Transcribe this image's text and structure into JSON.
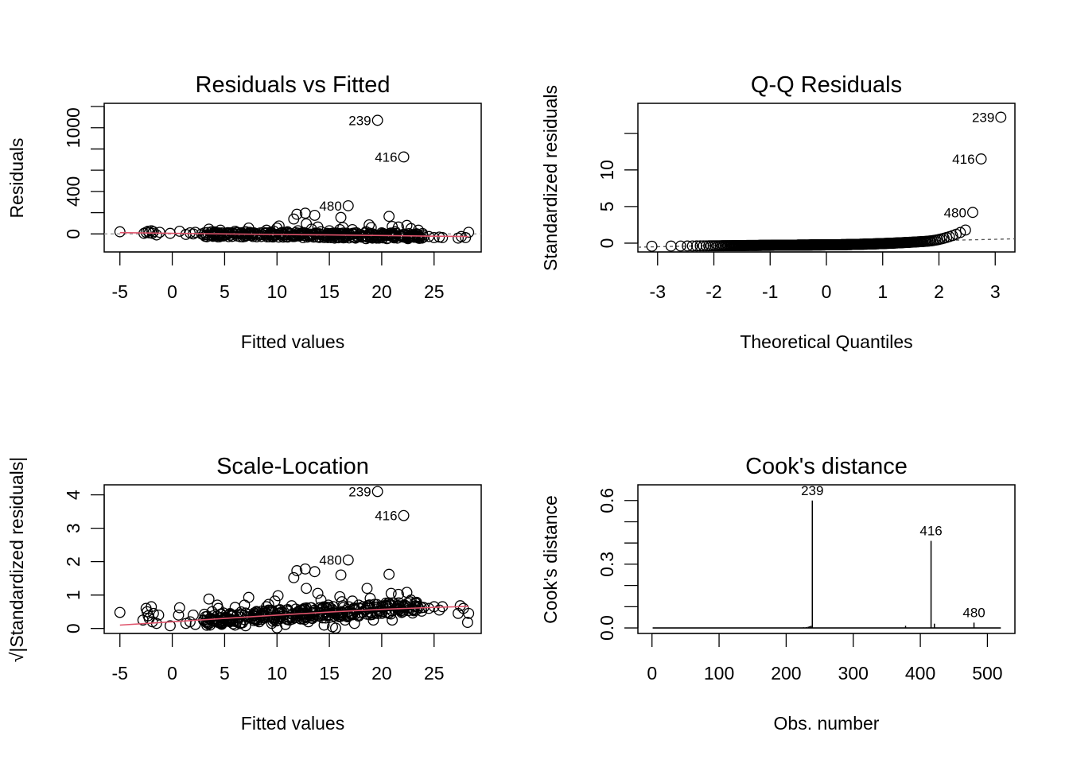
{
  "colors": {
    "points": "#000000",
    "smoother": "#DF536B",
    "reference": "#999999"
  },
  "chart_data": [
    {
      "id": "resid_fitted",
      "type": "scatter",
      "title": "Residuals vs Fitted",
      "xlabel": "Fitted values",
      "ylabel": "Residuals",
      "xlim": [
        -6.5,
        29.5
      ],
      "ylim": [
        -170,
        1230
      ],
      "xticks": [
        -5,
        0,
        5,
        10,
        15,
        20,
        25
      ],
      "xtick_labels": [
        "-5",
        "0",
        "5",
        "10",
        "15",
        "20",
        "25"
      ],
      "yticks": [
        0,
        200,
        400,
        600,
        800,
        1000,
        1200
      ],
      "ytick_labels": [
        "0",
        "",
        "400",
        "",
        "",
        "1000",
        ""
      ],
      "reference_line": 0,
      "smoother": [
        [
          -5,
          12
        ],
        [
          0,
          5
        ],
        [
          5,
          0
        ],
        [
          10,
          -5
        ],
        [
          15,
          -10
        ],
        [
          20,
          -15
        ],
        [
          25,
          -22
        ],
        [
          28.3,
          -25
        ]
      ],
      "annotations": [
        {
          "label": "239",
          "x": 19.6,
          "y": 1070
        },
        {
          "label": "416",
          "x": 22.1,
          "y": 725
        },
        {
          "label": "480",
          "x": 16.8,
          "y": 265
        }
      ],
      "points": [
        [
          -5.0,
          20
        ],
        [
          -2.7,
          5
        ],
        [
          -2.5,
          15
        ],
        [
          -2.3,
          25
        ],
        [
          -2.2,
          10
        ],
        [
          -2.0,
          30
        ],
        [
          -1.9,
          5
        ],
        [
          -1.8,
          20
        ],
        [
          -1.5,
          -10
        ],
        [
          -1.2,
          15
        ],
        [
          -0.2,
          5
        ],
        [
          0.7,
          25
        ],
        [
          1.3,
          -5
        ],
        [
          1.7,
          10
        ],
        [
          2.2,
          15
        ],
        [
          2.8,
          0
        ],
        [
          3.5,
          45
        ],
        [
          3.8,
          20
        ],
        [
          4.2,
          5
        ],
        [
          4.6,
          35
        ],
        [
          5.0,
          -15
        ],
        [
          5.5,
          10
        ],
        [
          6.0,
          25
        ],
        [
          6.5,
          0
        ],
        [
          7.0,
          20
        ],
        [
          7.3,
          55
        ],
        [
          7.8,
          10
        ],
        [
          8.2,
          -10
        ],
        [
          8.7,
          15
        ],
        [
          9.0,
          35
        ],
        [
          9.3,
          5
        ],
        [
          9.7,
          25
        ],
        [
          10.0,
          55
        ],
        [
          10.2,
          75
        ],
        [
          10.5,
          15
        ],
        [
          10.8,
          -10
        ],
        [
          11.0,
          20
        ],
        [
          11.3,
          0
        ],
        [
          11.6,
          140
        ],
        [
          11.9,
          185
        ],
        [
          12.0,
          30
        ],
        [
          12.4,
          10
        ],
        [
          12.7,
          195
        ],
        [
          12.8,
          95
        ],
        [
          13.0,
          -5
        ],
        [
          13.3,
          45
        ],
        [
          13.6,
          175
        ],
        [
          13.9,
          65
        ],
        [
          14.2,
          20
        ],
        [
          14.6,
          -20
        ],
        [
          15.0,
          30
        ],
        [
          15.3,
          5
        ],
        [
          15.6,
          -15
        ],
        [
          16.0,
          40
        ],
        [
          16.1,
          155
        ],
        [
          16.3,
          60
        ],
        [
          16.6,
          -10
        ],
        [
          16.8,
          265
        ],
        [
          17.2,
          40
        ],
        [
          17.6,
          10
        ],
        [
          18.0,
          -5
        ],
        [
          18.5,
          20
        ],
        [
          18.8,
          85
        ],
        [
          19.0,
          60
        ],
        [
          19.3,
          -20
        ],
        [
          19.6,
          1070
        ],
        [
          20.0,
          10
        ],
        [
          20.4,
          -15
        ],
        [
          20.7,
          165
        ],
        [
          21.0,
          70
        ],
        [
          21.3,
          20
        ],
        [
          21.6,
          65
        ],
        [
          22.0,
          -25
        ],
        [
          22.1,
          725
        ],
        [
          22.4,
          80
        ],
        [
          22.8,
          50
        ],
        [
          23.0,
          -20
        ],
        [
          23.5,
          35
        ],
        [
          24.0,
          -30
        ],
        [
          24.5,
          -25
        ],
        [
          25.0,
          -35
        ],
        [
          25.5,
          -30
        ],
        [
          25.8,
          -35
        ],
        [
          27.3,
          -40
        ],
        [
          27.6,
          -25
        ],
        [
          28.0,
          -35
        ],
        [
          28.3,
          15
        ],
        [
          3.0,
          -10
        ],
        [
          4.0,
          -5
        ],
        [
          6.2,
          -20
        ],
        [
          7.5,
          -15
        ],
        [
          8.5,
          -25
        ],
        [
          9.5,
          -20
        ],
        [
          10.6,
          -30
        ],
        [
          11.5,
          -25
        ],
        [
          12.5,
          -35
        ],
        [
          13.5,
          -30
        ],
        [
          14.5,
          -35
        ],
        [
          15.5,
          -40
        ],
        [
          16.5,
          -35
        ],
        [
          17.5,
          -40
        ],
        [
          18.5,
          -45
        ],
        [
          19.5,
          -40
        ],
        [
          20.5,
          -45
        ],
        [
          21.5,
          -40
        ],
        [
          22.5,
          -45
        ],
        [
          23.5,
          -40
        ],
        [
          2.0,
          0
        ],
        [
          5.2,
          5
        ],
        [
          6.8,
          -5
        ],
        [
          8.0,
          0
        ],
        [
          9.8,
          -5
        ],
        [
          11.2,
          5
        ],
        [
          12.2,
          -10
        ],
        [
          13.8,
          0
        ],
        [
          14.8,
          5
        ],
        [
          15.8,
          -5
        ],
        [
          16.9,
          0
        ],
        [
          17.9,
          -10
        ],
        [
          18.9,
          -5
        ],
        [
          19.9,
          -15
        ],
        [
          20.9,
          -10
        ],
        [
          21.9,
          -15
        ],
        [
          22.9,
          -20
        ],
        [
          23.9,
          -10
        ]
      ]
    },
    {
      "id": "qq",
      "type": "scatter",
      "title": "Q-Q Residuals",
      "xlabel": "Theoretical Quantiles",
      "ylabel": "Standardized residuals",
      "xlim": [
        -3.35,
        3.35
      ],
      "ylim": [
        -1.2,
        19.1
      ],
      "xticks": [
        -3,
        -2,
        -1,
        0,
        1,
        2,
        3
      ],
      "xtick_labels": [
        "-3",
        "-2",
        "-1",
        "0",
        "1",
        "2",
        "3"
      ],
      "yticks": [
        0,
        5,
        10,
        15
      ],
      "ytick_labels": [
        "0",
        "5",
        "10",
        ""
      ],
      "reference_line": {
        "intercept": 0.0,
        "slope": 0.17,
        "intercept_shift": -0.55
      },
      "annotations": [
        {
          "label": "239",
          "x": 3.1,
          "y": 17.2
        },
        {
          "label": "416",
          "x": 2.75,
          "y": 11.5
        },
        {
          "label": "480",
          "x": 2.6,
          "y": 4.2
        }
      ]
    },
    {
      "id": "scale_location",
      "type": "scatter",
      "title": "Scale-Location",
      "xlabel": "Fitted values",
      "ylabel": "√|Standardized residuals|",
      "xlim": [
        -6.5,
        29.5
      ],
      "ylim": [
        -0.15,
        4.3
      ],
      "xticks": [
        -5,
        0,
        5,
        10,
        15,
        20,
        25
      ],
      "xtick_labels": [
        "-5",
        "0",
        "5",
        "10",
        "15",
        "20",
        "25"
      ],
      "yticks": [
        0,
        1,
        2,
        3,
        4
      ],
      "ytick_labels": [
        "0",
        "1",
        "2",
        "3",
        "4"
      ],
      "smoother": [
        [
          -5,
          0.1
        ],
        [
          0,
          0.2
        ],
        [
          5,
          0.3
        ],
        [
          10,
          0.4
        ],
        [
          15,
          0.49
        ],
        [
          20,
          0.57
        ],
        [
          25,
          0.63
        ],
        [
          28.3,
          0.66
        ]
      ],
      "annotations": [
        {
          "label": "239",
          "x": 19.6,
          "y": 4.1
        },
        {
          "label": "416",
          "x": 22.1,
          "y": 3.38
        },
        {
          "label": "480",
          "x": 16.8,
          "y": 2.05
        }
      ],
      "points": [
        [
          -5.0,
          0.48
        ],
        [
          -2.8,
          0.25
        ],
        [
          -2.5,
          0.6
        ],
        [
          -2.4,
          0.5
        ],
        [
          -2.3,
          0.38
        ],
        [
          -2.2,
          0.3
        ],
        [
          -2.0,
          0.65
        ],
        [
          -1.9,
          0.2
        ],
        [
          -1.8,
          0.45
        ],
        [
          -1.5,
          0.15
        ],
        [
          -1.3,
          0.4
        ],
        [
          -0.2,
          0.08
        ],
        [
          0.7,
          0.62
        ],
        [
          0.6,
          0.4
        ],
        [
          1.3,
          0.15
        ],
        [
          1.7,
          0.2
        ],
        [
          2.0,
          0.4
        ],
        [
          2.2,
          0.12
        ],
        [
          3.5,
          0.88
        ],
        [
          3.8,
          0.5
        ],
        [
          3.6,
          0.1
        ],
        [
          4.3,
          0.7
        ],
        [
          4.4,
          0.6
        ],
        [
          5.0,
          0.3
        ],
        [
          5.5,
          0.2
        ],
        [
          6.0,
          0.1
        ],
        [
          6.0,
          0.63
        ],
        [
          6.9,
          0.7
        ],
        [
          7.0,
          0.08
        ],
        [
          7.3,
          0.93
        ],
        [
          7.8,
          0.3
        ],
        [
          8.3,
          0.2
        ],
        [
          8.7,
          0.45
        ],
        [
          9.0,
          0.65
        ],
        [
          9.2,
          0.72
        ],
        [
          9.5,
          0.15
        ],
        [
          9.8,
          0.82
        ],
        [
          10.1,
          0.98
        ],
        [
          10.0,
          0.02
        ],
        [
          10.5,
          0.5
        ],
        [
          10.8,
          0.12
        ],
        [
          11.0,
          0.35
        ],
        [
          11.4,
          0.68
        ],
        [
          11.6,
          1.52
        ],
        [
          11.9,
          1.73
        ],
        [
          12.0,
          0.4
        ],
        [
          12.3,
          0.55
        ],
        [
          12.7,
          1.78
        ],
        [
          12.8,
          1.2
        ],
        [
          13.0,
          0.2
        ],
        [
          13.3,
          0.62
        ],
        [
          13.6,
          1.7
        ],
        [
          13.9,
          1.05
        ],
        [
          14.2,
          0.85
        ],
        [
          14.5,
          0.1
        ],
        [
          14.9,
          0.7
        ],
        [
          15.3,
          0.05
        ],
        [
          15.6,
          0.01
        ],
        [
          16.0,
          0.95
        ],
        [
          16.1,
          1.6
        ],
        [
          16.2,
          0.8
        ],
        [
          16.5,
          0.25
        ],
        [
          16.8,
          2.05
        ],
        [
          17.2,
          0.82
        ],
        [
          17.4,
          0.15
        ],
        [
          17.8,
          0.4
        ],
        [
          18.2,
          0.65
        ],
        [
          18.6,
          1.2
        ],
        [
          18.9,
          0.9
        ],
        [
          19.2,
          0.25
        ],
        [
          19.6,
          4.1
        ],
        [
          20.0,
          0.45
        ],
        [
          20.4,
          0.7
        ],
        [
          20.7,
          1.62
        ],
        [
          20.9,
          1.05
        ],
        [
          21.0,
          0.25
        ],
        [
          21.6,
          1.02
        ],
        [
          22.0,
          0.5
        ],
        [
          22.1,
          3.38
        ],
        [
          22.4,
          1.08
        ],
        [
          22.8,
          0.85
        ],
        [
          23.3,
          0.55
        ],
        [
          23.8,
          0.62
        ],
        [
          24.5,
          0.6
        ],
        [
          25.0,
          0.65
        ],
        [
          25.5,
          0.55
        ],
        [
          25.8,
          0.65
        ],
        [
          27.3,
          0.45
        ],
        [
          27.5,
          0.68
        ],
        [
          27.8,
          0.6
        ],
        [
          28.3,
          0.45
        ],
        [
          28.2,
          0.18
        ],
        [
          3.0,
          0.25
        ],
        [
          4.0,
          0.28
        ],
        [
          5.2,
          0.32
        ],
        [
          6.5,
          0.34
        ],
        [
          7.5,
          0.36
        ],
        [
          8.5,
          0.38
        ],
        [
          9.5,
          0.4
        ],
        [
          10.5,
          0.42
        ],
        [
          11.5,
          0.44
        ],
        [
          12.5,
          0.46
        ],
        [
          13.5,
          0.48
        ],
        [
          14.5,
          0.5
        ],
        [
          15.5,
          0.51
        ],
        [
          16.5,
          0.53
        ],
        [
          17.5,
          0.55
        ],
        [
          18.5,
          0.56
        ],
        [
          19.5,
          0.58
        ],
        [
          20.5,
          0.59
        ],
        [
          21.5,
          0.6
        ],
        [
          22.5,
          0.61
        ],
        [
          23.5,
          0.62
        ],
        [
          24.0,
          0.63
        ],
        [
          4.5,
          0.2
        ],
        [
          6.2,
          0.22
        ],
        [
          8.0,
          0.28
        ],
        [
          9.8,
          0.3
        ],
        [
          11.2,
          0.32
        ],
        [
          12.8,
          0.36
        ],
        [
          14.0,
          0.38
        ],
        [
          15.0,
          0.4
        ],
        [
          16.0,
          0.42
        ],
        [
          17.0,
          0.44
        ],
        [
          18.0,
          0.46
        ],
        [
          19.0,
          0.48
        ],
        [
          20.0,
          0.5
        ],
        [
          21.0,
          0.52
        ],
        [
          22.0,
          0.54
        ],
        [
          23.0,
          0.56
        ],
        [
          5.5,
          0.42
        ],
        [
          7.0,
          0.46
        ],
        [
          8.8,
          0.5
        ],
        [
          10.3,
          0.55
        ],
        [
          11.8,
          0.58
        ],
        [
          13.2,
          0.62
        ],
        [
          14.7,
          0.64
        ],
        [
          16.3,
          0.68
        ],
        [
          17.8,
          0.7
        ],
        [
          19.3,
          0.72
        ],
        [
          20.8,
          0.72
        ],
        [
          22.2,
          0.7
        ]
      ]
    },
    {
      "id": "cooks",
      "type": "bar",
      "title": "Cook's distance",
      "xlabel": "Obs. number",
      "ylabel": "Cook's distance",
      "xlim": [
        -21,
        541
      ],
      "ylim": [
        -0.026,
        0.674
      ],
      "xticks": [
        0,
        100,
        200,
        300,
        400,
        500
      ],
      "xtick_labels": [
        "0",
        "100",
        "200",
        "300",
        "400",
        "500"
      ],
      "yticks": [
        0.0,
        0.1,
        0.2,
        0.3,
        0.4,
        0.5,
        0.6
      ],
      "ytick_labels": [
        "0.0",
        "",
        "",
        "0.3",
        "",
        "",
        "0.6"
      ],
      "n": 520,
      "spikes": [
        [
          239,
          0.6
        ],
        [
          416,
          0.41
        ],
        [
          480,
          0.025
        ],
        [
          421,
          0.02
        ],
        [
          237,
          0.01
        ],
        [
          235,
          0.008
        ],
        [
          233,
          0.006
        ],
        [
          378,
          0.01
        ],
        [
          230,
          0.004
        ],
        [
          226,
          0.003
        ]
      ],
      "annotations": [
        {
          "label": "239",
          "x": 239,
          "y": 0.6
        },
        {
          "label": "416",
          "x": 416,
          "y": 0.41
        },
        {
          "label": "480",
          "x": 480,
          "y": 0.025
        }
      ]
    }
  ]
}
